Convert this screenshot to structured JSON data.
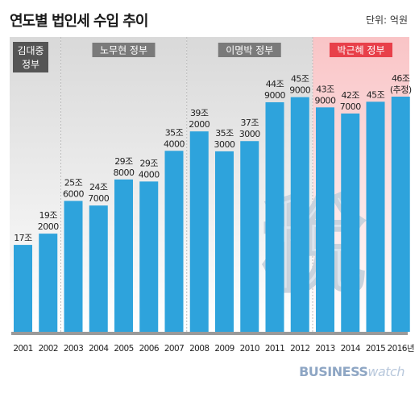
{
  "header": {
    "title": "연도별 법인세 수입 추이",
    "unit": "단위: 억원"
  },
  "eras": [
    {
      "name": "김대중 정부",
      "line1": "김대중",
      "line2": "정부",
      "color": "#555555"
    },
    {
      "name": "노무현 정부",
      "color": "#7a7a7a"
    },
    {
      "name": "이명박 정부",
      "color": "#7a7a7a"
    },
    {
      "name": "박근혜 정부",
      "color": "#e8404a"
    }
  ],
  "chart_data": {
    "type": "bar",
    "title": "연도별 법인세 수입 추이",
    "unit": "억원",
    "categories": [
      "2001",
      "2002",
      "2003",
      "2004",
      "2005",
      "2006",
      "2007",
      "2008",
      "2009",
      "2010",
      "2011",
      "2012",
      "2013",
      "2014",
      "2015",
      "2016년"
    ],
    "values": [
      170000,
      192000,
      256000,
      247000,
      298000,
      294000,
      354000,
      392000,
      353000,
      373000,
      449000,
      459000,
      439000,
      427000,
      450000,
      460000
    ],
    "labels": [
      [
        "17조"
      ],
      [
        "19조",
        "2000"
      ],
      [
        "25조",
        "6000"
      ],
      [
        "24조",
        "7000"
      ],
      [
        "29조",
        "8000"
      ],
      [
        "29조",
        "4000"
      ],
      [
        "35조",
        "4000"
      ],
      [
        "39조",
        "2000"
      ],
      [
        "35조",
        "3000"
      ],
      [
        "37조",
        "3000"
      ],
      [
        "44조",
        "9000"
      ],
      [
        "45조",
        "9000"
      ],
      [
        "43조",
        "9000"
      ],
      [
        "42조",
        "7000"
      ],
      [
        "45조"
      ],
      [
        "46조",
        "(추정)"
      ]
    ],
    "bar_color": "#2ea3dc",
    "ylim": [
      0,
      470000
    ]
  },
  "watermark": "稅",
  "brand": {
    "part1": "BUSINESS",
    "part2": "watch"
  }
}
